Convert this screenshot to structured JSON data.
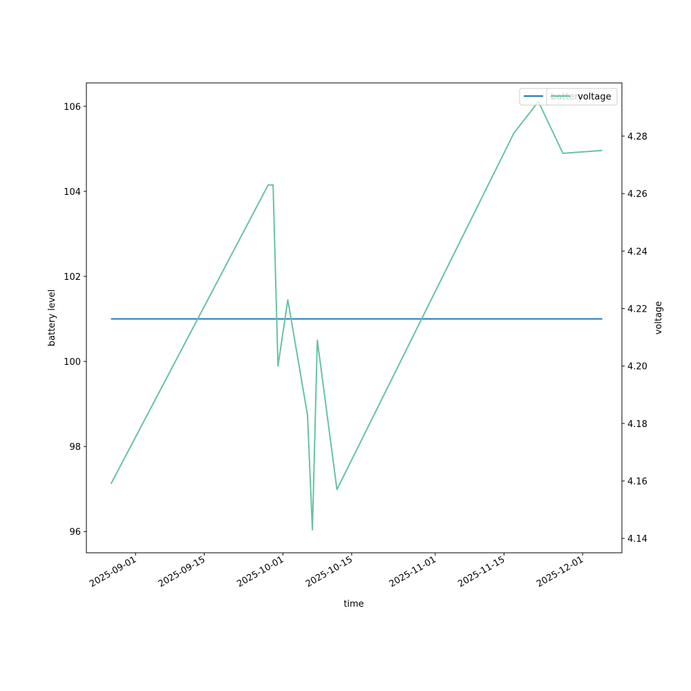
{
  "chart_data": {
    "type": "line",
    "title": "",
    "xlabel": "time",
    "ylabel": "battery level",
    "y2label": "voltage",
    "x_ticks": [
      "2025-09-01",
      "2025-09-15",
      "2025-10-01",
      "2025-10-15",
      "2025-11-01",
      "2025-11-15",
      "2025-12-01"
    ],
    "y_ticks": [
      96,
      98,
      100,
      102,
      104,
      106
    ],
    "y2_ticks": [
      4.14,
      4.16,
      4.18,
      4.2,
      4.22,
      4.24,
      4.26,
      4.28
    ],
    "xlim": [
      "2025-08-22",
      "2025-12-09"
    ],
    "ylim": [
      95.5,
      106.55
    ],
    "y2lim": [
      4.135,
      4.2985
    ],
    "grid": false,
    "legend_position": "top-right",
    "series": [
      {
        "name": "battery",
        "axis": "left",
        "color": "#1f77b4",
        "x": [
          "2025-08-27",
          "2025-12-05"
        ],
        "y": [
          101,
          101
        ]
      },
      {
        "name": "voltage",
        "axis": "right",
        "color": "#66c2a5",
        "x": [
          "2025-08-27",
          "2025-09-28",
          "2025-09-29",
          "2025-09-30",
          "2025-10-02",
          "2025-10-06",
          "2025-10-07",
          "2025-10-08",
          "2025-10-12",
          "2025-11-17",
          "2025-11-22",
          "2025-11-27",
          "2025-12-05"
        ],
        "y": [
          4.159,
          4.263,
          4.263,
          4.2,
          4.223,
          4.183,
          4.143,
          4.209,
          4.157,
          4.281,
          4.292,
          4.274,
          4.275
        ]
      }
    ],
    "legend_labels": [
      "battery",
      "voltage"
    ]
  }
}
